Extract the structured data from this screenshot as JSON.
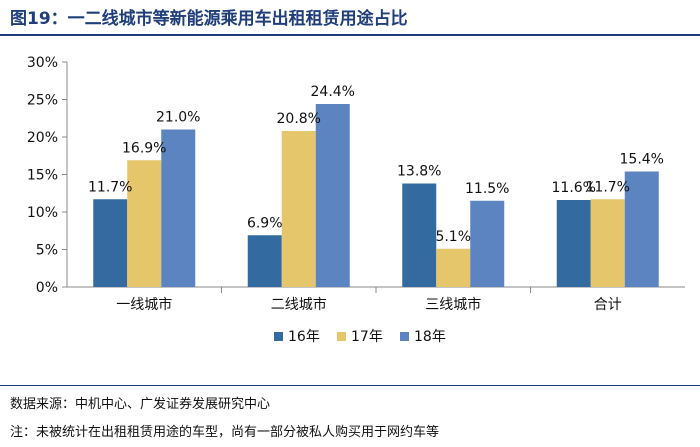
{
  "header": {
    "title": "图19：一二线城市等新能源乘用车出租租赁用途占比"
  },
  "footer": {
    "source": "数据来源：中机中心、广发证券发展研究中心",
    "note": "注：未被统计在出租租赁用途的车型，尚有一部分被私人购买用于网约车等"
  },
  "chart_data": {
    "type": "bar",
    "title": "",
    "xlabel": "",
    "ylabel": "",
    "categories": [
      "一线城市",
      "二线城市",
      "三线城市",
      "合计"
    ],
    "ylim": [
      0,
      30
    ],
    "yticks": [
      "0%",
      "5%",
      "10%",
      "15%",
      "20%",
      "25%",
      "30%"
    ],
    "grid": false,
    "legend_position": "bottom",
    "series": [
      {
        "name": "16年",
        "color": "#336ba1",
        "values": [
          11.7,
          6.9,
          13.8,
          11.6
        ],
        "labels": [
          "11.7%",
          "6.9%",
          "13.8%",
          "11.6%"
        ]
      },
      {
        "name": "17年",
        "color": "#e5c66b",
        "values": [
          16.9,
          20.8,
          5.1,
          11.7
        ],
        "labels": [
          "16.9%",
          "20.8%",
          "5.1%",
          "11.7%"
        ]
      },
      {
        "name": "18年",
        "color": "#5b84c1",
        "values": [
          21.0,
          24.4,
          11.5,
          15.4
        ],
        "labels": [
          "21.0%",
          "24.4%",
          "11.5%",
          "15.4%"
        ]
      }
    ]
  }
}
